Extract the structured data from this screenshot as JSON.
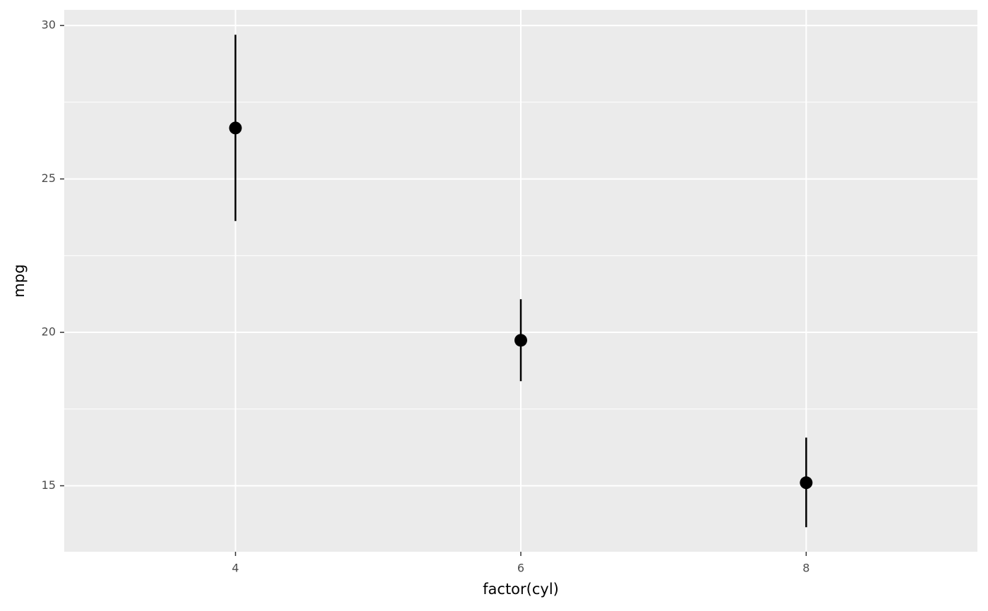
{
  "chart_data": {
    "type": "pointrange",
    "x_label": "factor(cyl)",
    "y_label": "mpg",
    "categories": [
      "4",
      "6",
      "8"
    ],
    "values": [
      26.66,
      19.74,
      15.1
    ],
    "ymin": [
      23.63,
      18.41,
      13.65
    ],
    "ymax": [
      29.7,
      21.08,
      16.57
    ],
    "color": "#000000",
    "ylim": [
      12.85,
      30.51
    ],
    "yticks": [
      15,
      20,
      25,
      30
    ],
    "yminor": [
      17.5,
      22.5,
      27.5
    ],
    "grid": true
  }
}
